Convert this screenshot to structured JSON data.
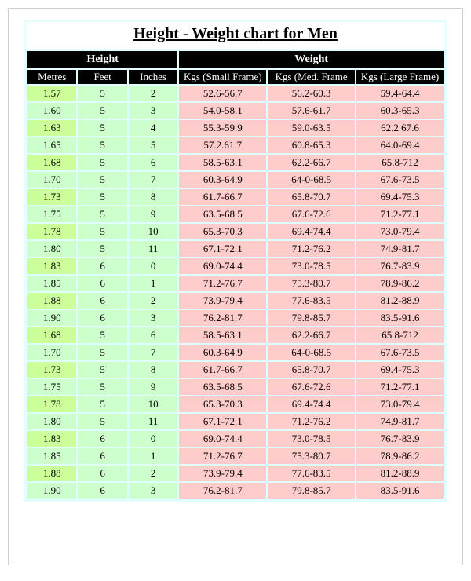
{
  "title": "Height - Weight chart for Men",
  "title_fontsize": 20,
  "colors": {
    "outer_border": "#d0d0d0",
    "chart_bg": "#e0ffff",
    "title_bg": "#ffffff",
    "header_bg": "#000000",
    "header_fg": "#ffffff",
    "height_alt": "#ccff99",
    "height_norm": "#ccffcc",
    "weight_cell": "#ffcccc"
  },
  "headers": {
    "height": "Height",
    "weight": "Weight",
    "metres": "Metres",
    "feet": "Feet",
    "inches": "Inches",
    "small": "Kgs (Small Frame)",
    "med": "Kgs (Med. Frame",
    "large": "Kgs (Large Frame)"
  },
  "col_widths_pct": [
    12,
    12,
    12,
    21.3,
    21.3,
    21.3
  ],
  "header_fontsize": 14,
  "subheader_fontsize": 13,
  "body_fontsize": 13,
  "rows": [
    {
      "m": "1.57",
      "f": "5",
      "i": "2",
      "s": "52.6-56.7",
      "md": "56.2-60.3",
      "l": "59.4-64.4"
    },
    {
      "m": "1.60",
      "f": "5",
      "i": "3",
      "s": "54.0-58.1",
      "md": "57.6-61.7",
      "l": "60.3-65.3"
    },
    {
      "m": "1.63",
      "f": "5",
      "i": "4",
      "s": "55.3-59.9",
      "md": "59.0-63.5",
      "l": "62.2.67.6"
    },
    {
      "m": "1.65",
      "f": "5",
      "i": "5",
      "s": "57.2.61.7",
      "md": "60.8-65.3",
      "l": "64.0-69.4"
    },
    {
      "m": "1.68",
      "f": "5",
      "i": "6",
      "s": "58.5-63.1",
      "md": "62.2-66.7",
      "l": "65.8-712"
    },
    {
      "m": "1.70",
      "f": "5",
      "i": "7",
      "s": "60.3-64.9",
      "md": "64-0-68.5",
      "l": "67.6-73.5"
    },
    {
      "m": "1.73",
      "f": "5",
      "i": "8",
      "s": "61.7-66.7",
      "md": "65.8-70.7",
      "l": "69.4-75.3"
    },
    {
      "m": "1.75",
      "f": "5",
      "i": "9",
      "s": "63.5-68.5",
      "md": "67.6-72.6",
      "l": "71.2-77.1"
    },
    {
      "m": "1.78",
      "f": "5",
      "i": "10",
      "s": "65.3-70.3",
      "md": "69.4-74.4",
      "l": "73.0-79.4"
    },
    {
      "m": "1.80",
      "f": "5",
      "i": "11",
      "s": "67.1-72.1",
      "md": "71.2-76.2",
      "l": "74.9-81.7"
    },
    {
      "m": "1.83",
      "f": "6",
      "i": "0",
      "s": "69.0-74.4",
      "md": "73.0-78.5",
      "l": "76.7-83.9"
    },
    {
      "m": "1.85",
      "f": "6",
      "i": "1",
      "s": "71.2-76.7",
      "md": "75.3-80.7",
      "l": "78.9-86.2"
    },
    {
      "m": "1.88",
      "f": "6",
      "i": "2",
      "s": "73.9-79.4",
      "md": "77.6-83.5",
      "l": "81.2-88.9"
    },
    {
      "m": "1.90",
      "f": "6",
      "i": "3",
      "s": "76.2-81.7",
      "md": "79.8-85.7",
      "l": "83.5-91.6"
    },
    {
      "m": "1.68",
      "f": "5",
      "i": "6",
      "s": "58.5-63.1",
      "md": "62.2-66.7",
      "l": "65.8-712"
    },
    {
      "m": "1.70",
      "f": "5",
      "i": "7",
      "s": "60.3-64.9",
      "md": "64-0-68.5",
      "l": "67.6-73.5"
    },
    {
      "m": "1.73",
      "f": "5",
      "i": "8",
      "s": "61.7-66.7",
      "md": "65.8-70.7",
      "l": "69.4-75.3"
    },
    {
      "m": "1.75",
      "f": "5",
      "i": "9",
      "s": "63.5-68.5",
      "md": "67.6-72.6",
      "l": "71.2-77.1"
    },
    {
      "m": "1.78",
      "f": "5",
      "i": "10",
      "s": "65.3-70.3",
      "md": "69.4-74.4",
      "l": "73.0-79.4"
    },
    {
      "m": "1.80",
      "f": "5",
      "i": "11",
      "s": "67.1-72.1",
      "md": "71.2-76.2",
      "l": "74.9-81.7"
    },
    {
      "m": "1.83",
      "f": "6",
      "i": "0",
      "s": "69.0-74.4",
      "md": "73.0-78.5",
      "l": "76.7-83.9"
    },
    {
      "m": "1.85",
      "f": "6",
      "i": "1",
      "s": "71.2-76.7",
      "md": "75.3-80.7",
      "l": "78.9-86.2"
    },
    {
      "m": "1.88",
      "f": "6",
      "i": "2",
      "s": "73.9-79.4",
      "md": "77.6-83.5",
      "l": "81.2-88.9"
    },
    {
      "m": "1.90",
      "f": "6",
      "i": "3",
      "s": "76.2-81.7",
      "md": "79.8-85.7",
      "l": "83.5-91.6"
    }
  ]
}
